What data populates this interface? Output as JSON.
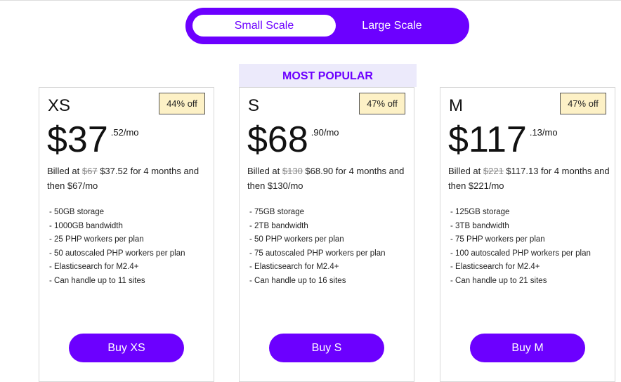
{
  "toggle": {
    "small": "Small Scale",
    "large": "Large Scale",
    "selected": "Small Scale"
  },
  "popular_label": "MOST POPULAR",
  "accent": "#6c00ff",
  "plans": [
    {
      "name": "XS",
      "discount": "44% off",
      "dollars": "$37",
      "cents": ".52/mo",
      "billed_prefix": "Billed at",
      "old_price": "$67",
      "billed_rest": "$37.52 for 4 months and then $67/mo",
      "features": [
        "50GB storage",
        "1000GB bandwidth",
        "25 PHP workers per plan",
        "50 autoscaled PHP workers per plan",
        "Elasticsearch for M2.4+",
        "Can handle up to 11 sites"
      ],
      "button": "Buy XS"
    },
    {
      "name": "S",
      "discount": "47% off",
      "dollars": "$68",
      "cents": ".90/mo",
      "billed_prefix": "Billed at",
      "old_price": "$130",
      "billed_rest": "$68.90 for 4 months and then $130/mo",
      "features": [
        "75GB storage",
        "2TB bandwidth",
        "50 PHP workers per plan",
        "75 autoscaled PHP workers per plan",
        "Elasticsearch for M2.4+",
        "Can handle up to 16 sites"
      ],
      "button": "Buy S"
    },
    {
      "name": "M",
      "discount": "47% off",
      "dollars": "$117",
      "cents": ".13/mo",
      "billed_prefix": "Billed at",
      "old_price": "$221",
      "billed_rest": "$117.13 for 4 months and then $221/mo",
      "features": [
        "125GB storage",
        "3TB bandwidth",
        "75 PHP workers per plan",
        "100 autoscaled PHP workers per plan",
        "Elasticsearch for M2.4+",
        "Can handle up to 21 sites"
      ],
      "button": "Buy M"
    }
  ]
}
